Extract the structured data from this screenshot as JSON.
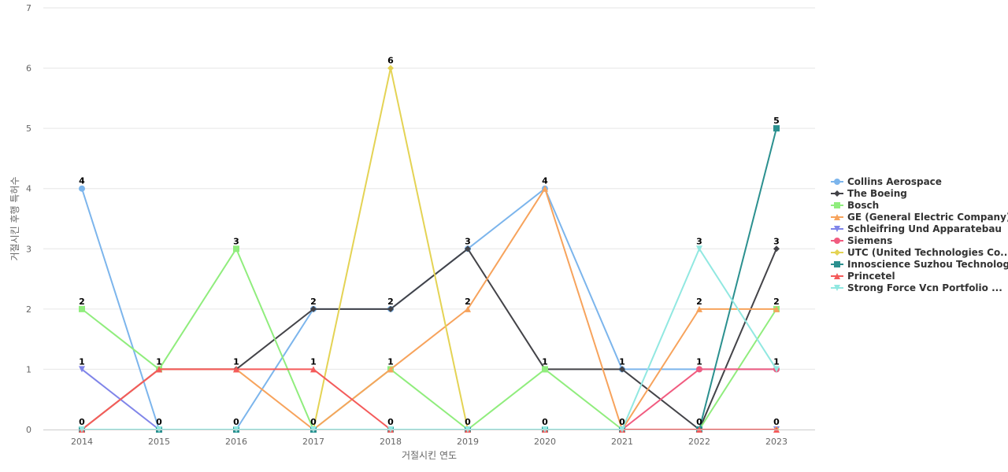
{
  "chart_data": {
    "type": "line",
    "x": [
      "2014",
      "2015",
      "2016",
      "2017",
      "2018",
      "2019",
      "2020",
      "2021",
      "2022",
      "2023"
    ],
    "xlabel": "거절시킨 연도",
    "ylabel": "거절시킨 후행 특허수",
    "ylim": [
      0,
      7
    ],
    "yticks": [
      0,
      1,
      2,
      3,
      4,
      5,
      6,
      7
    ],
    "grid": true,
    "legend_position": "right",
    "series": [
      {
        "name": "Collins Aerospace",
        "color": "#7cb5ec",
        "marker": "circle",
        "values": [
          4,
          0,
          0,
          2,
          2,
          3,
          4,
          1,
          1,
          1
        ]
      },
      {
        "name": "The Boeing",
        "color": "#434348",
        "marker": "diamond",
        "values": [
          0,
          1,
          1,
          2,
          2,
          3,
          1,
          1,
          0,
          3
        ]
      },
      {
        "name": "Bosch",
        "color": "#90ed7d",
        "marker": "square",
        "values": [
          2,
          1,
          3,
          0,
          1,
          0,
          1,
          0,
          0,
          2
        ]
      },
      {
        "name": "GE (General Electric Company)",
        "color": "#f7a35c",
        "marker": "triangle",
        "values": [
          0,
          1,
          1,
          0,
          1,
          2,
          4,
          0,
          2,
          2
        ]
      },
      {
        "name": "Schleifring Und Apparatebau",
        "color": "#8085e9",
        "marker": "triangle-down",
        "values": [
          1,
          0,
          0,
          0,
          0,
          0,
          0,
          0,
          0,
          0
        ]
      },
      {
        "name": "Siemens",
        "color": "#f15c80",
        "marker": "circle",
        "values": [
          0,
          0,
          0,
          0,
          0,
          0,
          0,
          0,
          1,
          1
        ]
      },
      {
        "name": "UTC (United Technologies Co...",
        "color": "#e4d354",
        "marker": "diamond",
        "values": [
          0,
          0,
          0,
          0,
          6,
          0,
          0,
          0,
          0,
          0
        ]
      },
      {
        "name": "Innoscience Suzhou Technology",
        "color": "#2b908f",
        "marker": "square",
        "values": [
          0,
          0,
          0,
          0,
          0,
          0,
          0,
          0,
          0,
          5
        ]
      },
      {
        "name": "Princetel",
        "color": "#f45b5b",
        "marker": "triangle",
        "values": [
          0,
          1,
          1,
          1,
          0,
          0,
          0,
          0,
          0,
          0
        ]
      },
      {
        "name": "Strong Force Vcn Portfolio ...",
        "color": "#91e8e1",
        "marker": "triangle-down",
        "values": [
          0,
          0,
          0,
          0,
          0,
          0,
          0,
          0,
          3,
          1
        ]
      }
    ],
    "data_labels": [
      {
        "x": "2014",
        "value": 4
      },
      {
        "x": "2014",
        "value": 2
      },
      {
        "x": "2014",
        "value": 1
      },
      {
        "x": "2014",
        "value": 0
      },
      {
        "x": "2015",
        "value": 1
      },
      {
        "x": "2015",
        "value": 0
      },
      {
        "x": "2016",
        "value": 3
      },
      {
        "x": "2016",
        "value": 1
      },
      {
        "x": "2016",
        "value": 0
      },
      {
        "x": "2017",
        "value": 2
      },
      {
        "x": "2017",
        "value": 1
      },
      {
        "x": "2017",
        "value": 0
      },
      {
        "x": "2018",
        "value": 6
      },
      {
        "x": "2018",
        "value": 2
      },
      {
        "x": "2018",
        "value": 1
      },
      {
        "x": "2018",
        "value": 0
      },
      {
        "x": "2019",
        "value": 3
      },
      {
        "x": "2019",
        "value": 2
      },
      {
        "x": "2019",
        "value": 0
      },
      {
        "x": "2020",
        "value": 4
      },
      {
        "x": "2020",
        "value": 1
      },
      {
        "x": "2020",
        "value": 0
      },
      {
        "x": "2021",
        "value": 1
      },
      {
        "x": "2021",
        "value": 0
      },
      {
        "x": "2022",
        "value": 3
      },
      {
        "x": "2022",
        "value": 2
      },
      {
        "x": "2022",
        "value": 1
      },
      {
        "x": "2022",
        "value": 0
      },
      {
        "x": "2023",
        "value": 5
      },
      {
        "x": "2023",
        "value": 3
      },
      {
        "x": "2023",
        "value": 2
      },
      {
        "x": "2023",
        "value": 1
      },
      {
        "x": "2023",
        "value": 0
      }
    ]
  }
}
